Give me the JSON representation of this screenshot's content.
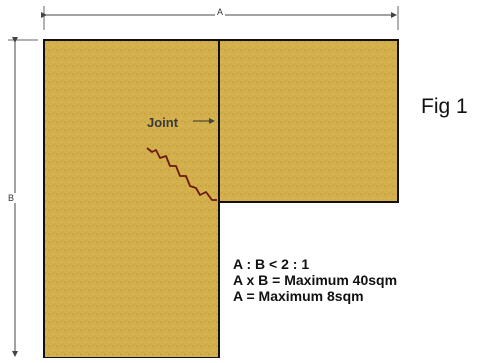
{
  "figure": {
    "title": "Fig 1",
    "joint_label": "Joint",
    "dimension_a": "A",
    "dimension_b": "B",
    "rules": [
      "A : B  <  2 : 1",
      "A x B = Maximum 40sqm",
      "A = Maximum 8sqm"
    ],
    "colors": {
      "slab_fill": "#d3b04c",
      "slab_outline": "#111111",
      "crack": "#6b1a0f",
      "dimension_line": "#444444"
    }
  }
}
